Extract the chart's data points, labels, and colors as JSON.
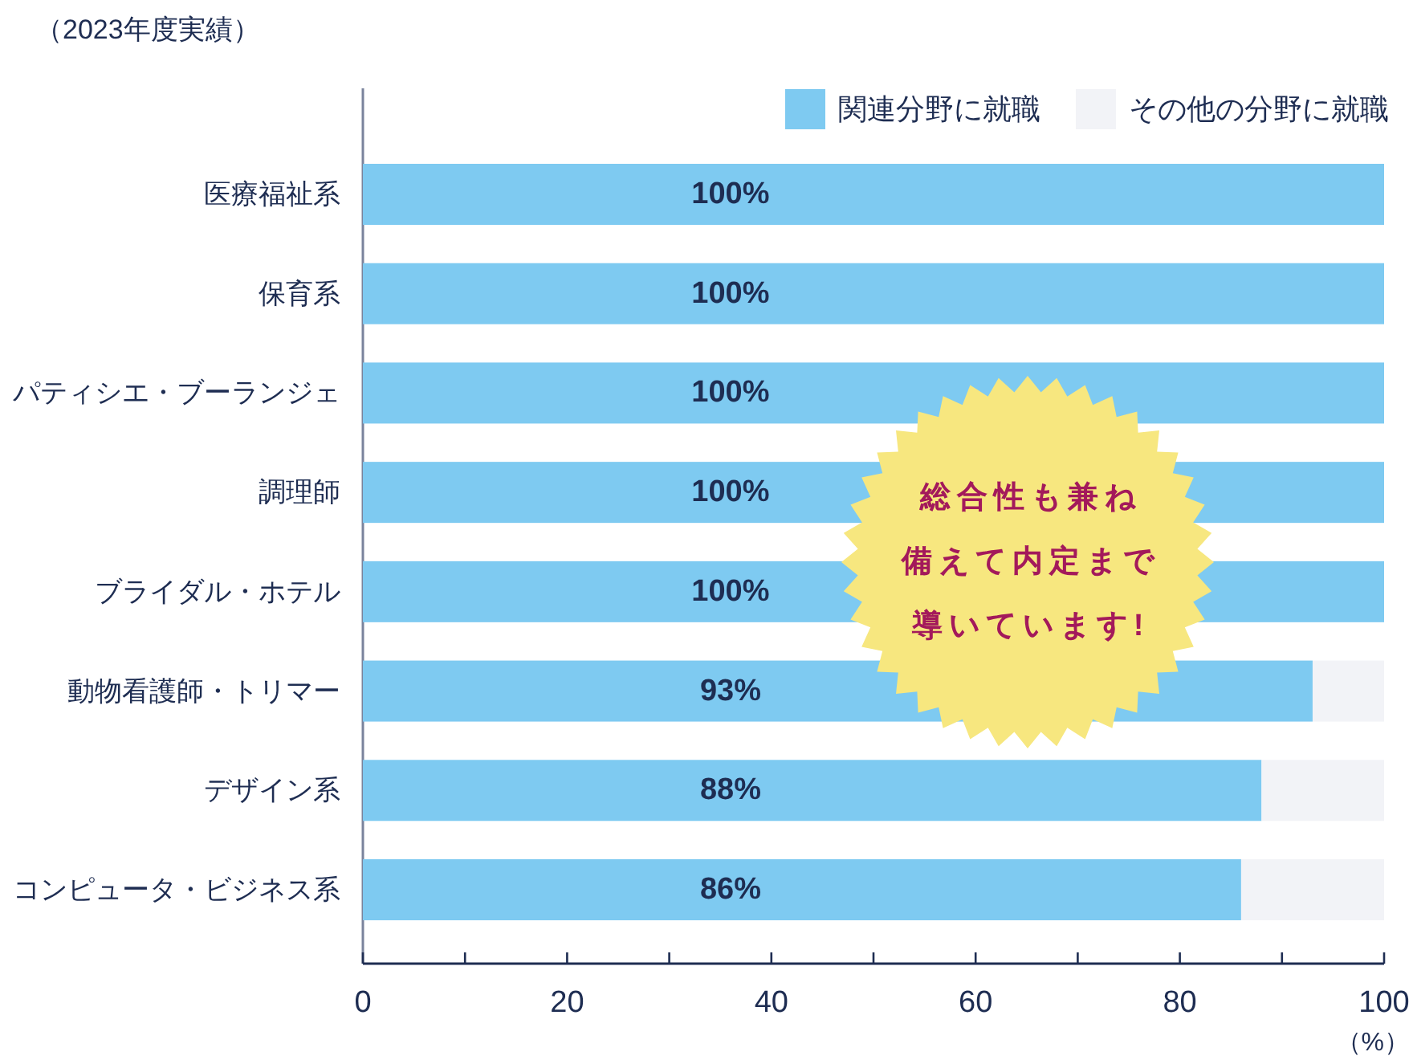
{
  "chart_data": {
    "type": "bar",
    "orientation": "horizontal",
    "stacked": true,
    "title": "（2023年度実績）",
    "xlabel": "（%）",
    "categories": [
      "医療福祉系",
      "保育系",
      "パティシエ・ブーランジェ",
      "調理師",
      "ブライダル・ホテル",
      "動物看護師・トリマー",
      "デザイン系",
      "コンピュータ・ビジネス系"
    ],
    "series": [
      {
        "name": "関連分野に就職",
        "color": "#7ecaf1",
        "values": [
          100,
          100,
          100,
          100,
          100,
          93,
          88,
          86
        ],
        "value_labels": [
          "100%",
          "100%",
          "100%",
          "100%",
          "100%",
          "93%",
          "88%",
          "86%"
        ]
      },
      {
        "name": "その他の分野に就職",
        "color": "#f2f3f7",
        "values": [
          0,
          0,
          0,
          0,
          0,
          7,
          12,
          14
        ]
      }
    ],
    "xlim": [
      0,
      100
    ],
    "xticks": [
      0,
      {
        "value": 10,
        "label": null
      },
      20,
      {
        "value": 30,
        "label": null
      },
      40,
      {
        "value": 50,
        "label": null
      },
      60,
      {
        "value": 70,
        "label": null
      },
      80,
      {
        "value": 90,
        "label": null
      },
      100
    ],
    "legend": "top right",
    "annotations": [
      "総合性も兼ね備えて内定まで導いています!"
    ]
  }
}
